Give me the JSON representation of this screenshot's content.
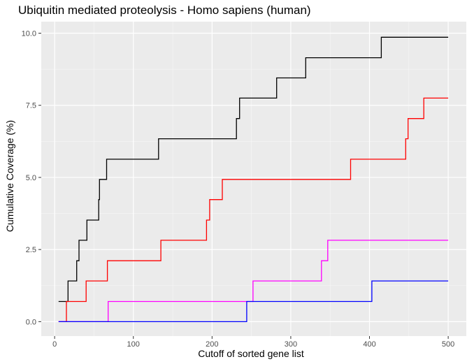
{
  "chart_data": {
    "type": "line",
    "step": true,
    "title": "Ubiquitin mediated proteolysis - Homo sapiens (human)",
    "xlabel": "Cutoff of sorted gene list",
    "ylabel": "Cumulative Coverage (%)",
    "xlim": [
      -17,
      523
    ],
    "ylim": [
      -0.5,
      10.4
    ],
    "xticks": [
      0,
      100,
      200,
      300,
      400,
      500
    ],
    "xtick_labels": [
      "0",
      "100",
      "200",
      "300",
      "400",
      "500"
    ],
    "yticks": [
      0,
      2.5,
      5,
      7.5,
      10
    ],
    "ytick_labels": [
      "0.0",
      "2.5",
      "5.0",
      "7.5",
      "10.0"
    ],
    "grid": true,
    "legend": "none",
    "series": [
      {
        "color": "#000000",
        "points": [
          [
            5,
            0.7
          ],
          [
            17,
            0.7
          ],
          [
            17,
            1.41
          ],
          [
            28,
            1.41
          ],
          [
            28,
            2.11
          ],
          [
            31,
            2.11
          ],
          [
            31,
            2.82
          ],
          [
            41,
            2.82
          ],
          [
            41,
            3.52
          ],
          [
            56,
            3.52
          ],
          [
            56,
            4.23
          ],
          [
            57,
            4.23
          ],
          [
            57,
            4.93
          ],
          [
            66,
            4.93
          ],
          [
            66,
            5.63
          ],
          [
            132,
            5.63
          ],
          [
            132,
            6.34
          ],
          [
            231,
            6.34
          ],
          [
            231,
            7.04
          ],
          [
            235,
            7.04
          ],
          [
            235,
            7.75
          ],
          [
            282,
            7.75
          ],
          [
            282,
            8.45
          ],
          [
            319,
            8.45
          ],
          [
            319,
            9.15
          ],
          [
            415,
            9.15
          ],
          [
            415,
            9.86
          ],
          [
            500,
            9.86
          ]
        ]
      },
      {
        "color": "#ff0000",
        "points": [
          [
            5,
            0
          ],
          [
            15,
            0
          ],
          [
            15,
            0.7
          ],
          [
            40,
            0.7
          ],
          [
            40,
            1.41
          ],
          [
            67,
            1.41
          ],
          [
            67,
            2.11
          ],
          [
            135,
            2.11
          ],
          [
            135,
            2.82
          ],
          [
            193,
            2.82
          ],
          [
            193,
            3.52
          ],
          [
            197,
            3.52
          ],
          [
            197,
            4.23
          ],
          [
            213,
            4.23
          ],
          [
            213,
            4.93
          ],
          [
            376,
            4.93
          ],
          [
            376,
            5.63
          ],
          [
            446,
            5.63
          ],
          [
            446,
            6.34
          ],
          [
            449,
            6.34
          ],
          [
            449,
            7.04
          ],
          [
            469,
            7.04
          ],
          [
            469,
            7.75
          ],
          [
            500,
            7.75
          ]
        ]
      },
      {
        "color": "#ff00ff",
        "points": [
          [
            5,
            0
          ],
          [
            68,
            0
          ],
          [
            68,
            0.7
          ],
          [
            252,
            0.7
          ],
          [
            252,
            1.41
          ],
          [
            339,
            1.41
          ],
          [
            339,
            2.11
          ],
          [
            347,
            2.11
          ],
          [
            347,
            2.82
          ],
          [
            500,
            2.82
          ]
        ]
      },
      {
        "color": "#0000ff",
        "points": [
          [
            5,
            0
          ],
          [
            244,
            0
          ],
          [
            244,
            0.7
          ],
          [
            403,
            0.7
          ],
          [
            403,
            1.41
          ],
          [
            500,
            1.41
          ]
        ]
      }
    ]
  }
}
